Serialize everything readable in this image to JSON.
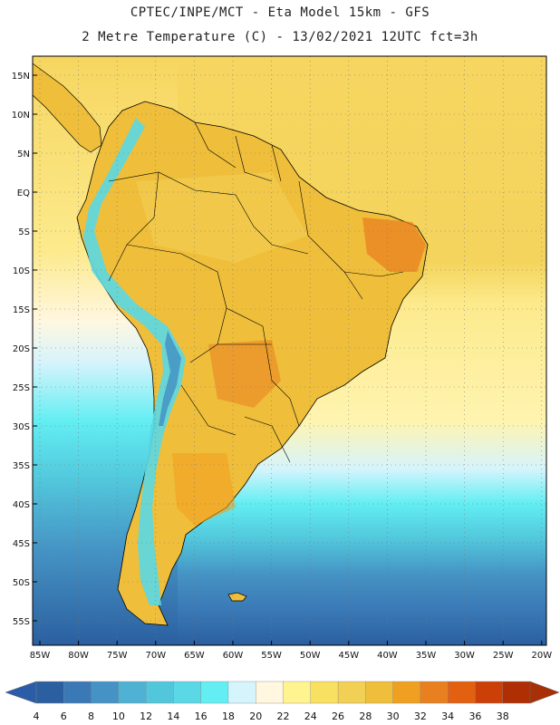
{
  "header": {
    "line1": "CPTEC/INPE/MCT -  Eta Model 15km - GFS",
    "line2": "2 Metre Temperature (C) - 13/02/2021 12UTC fct=3h"
  },
  "axes": {
    "lat_labels": [
      "15N",
      "10N",
      "5N",
      "EQ",
      "5S",
      "10S",
      "15S",
      "20S",
      "25S",
      "30S",
      "35S",
      "40S",
      "45S",
      "50S",
      "55S"
    ],
    "lon_labels": [
      "85W",
      "80W",
      "75W",
      "70W",
      "65W",
      "60W",
      "55W",
      "50W",
      "45W",
      "40W",
      "35W",
      "30W",
      "25W",
      "20W"
    ]
  },
  "colorbar": {
    "labels": [
      "4",
      "6",
      "8",
      "10",
      "12",
      "14",
      "16",
      "18",
      "20",
      "22",
      "24",
      "26",
      "28",
      "30",
      "32",
      "34",
      "36",
      "38"
    ],
    "colors": [
      "#2b5fa0",
      "#3a79b6",
      "#4593c4",
      "#4fb2d4",
      "#52c7dc",
      "#5ad8e6",
      "#62eef2",
      "#d6f4fc",
      "#fff7e0",
      "#fff490",
      "#f8e060",
      "#f2cf55",
      "#efbe3a",
      "#f0a020",
      "#e88020",
      "#e26010",
      "#cc4008",
      "#b02e04"
    ],
    "under_color": "#2a5ca8",
    "over_color": "#a83006"
  },
  "map_colors": {
    "ocean_warm": "#f6d660",
    "ocean_mid": "#fcea8c",
    "ocean_cool": "#d6f4fc",
    "ocean_cold": "#52c7dc",
    "ocean_colder": "#3a79b6",
    "ocean_coldest": "#2b5fa0",
    "land": "#efbe3a",
    "land_hot": "#e88020",
    "andes": "#5ad8e6"
  }
}
